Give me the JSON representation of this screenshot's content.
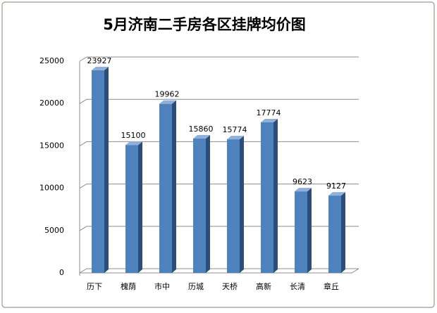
{
  "chart_data": {
    "type": "bar",
    "title": "5月济南二手房各区挂牌均价图",
    "categories": [
      "历下",
      "槐荫",
      "市中",
      "历城",
      "天桥",
      "高新",
      "长清",
      "章丘"
    ],
    "values": [
      23927,
      15100,
      19962,
      15860,
      15774,
      17774,
      9623,
      9127
    ],
    "color": "#4f81bd",
    "ylim": [
      0,
      25000
    ],
    "yticks": [
      0,
      5000,
      10000,
      15000,
      20000,
      25000
    ],
    "grid": true
  }
}
